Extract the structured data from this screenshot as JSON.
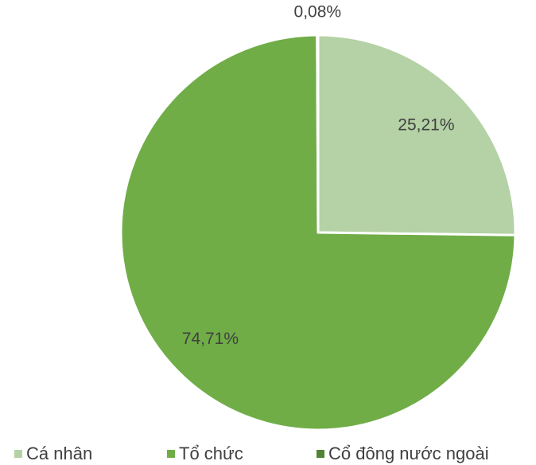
{
  "chart_data": {
    "type": "pie",
    "categories": [
      "Cá nhân",
      "Tổ chức",
      "Cổ đông nước ngoài"
    ],
    "values": [
      25.21,
      74.71,
      0.08
    ],
    "value_labels": [
      "25,21%",
      "74,71%",
      "0,08%"
    ],
    "colors": [
      "#b4d2a5",
      "#70ad47",
      "#548235"
    ],
    "legend": "bottom"
  }
}
